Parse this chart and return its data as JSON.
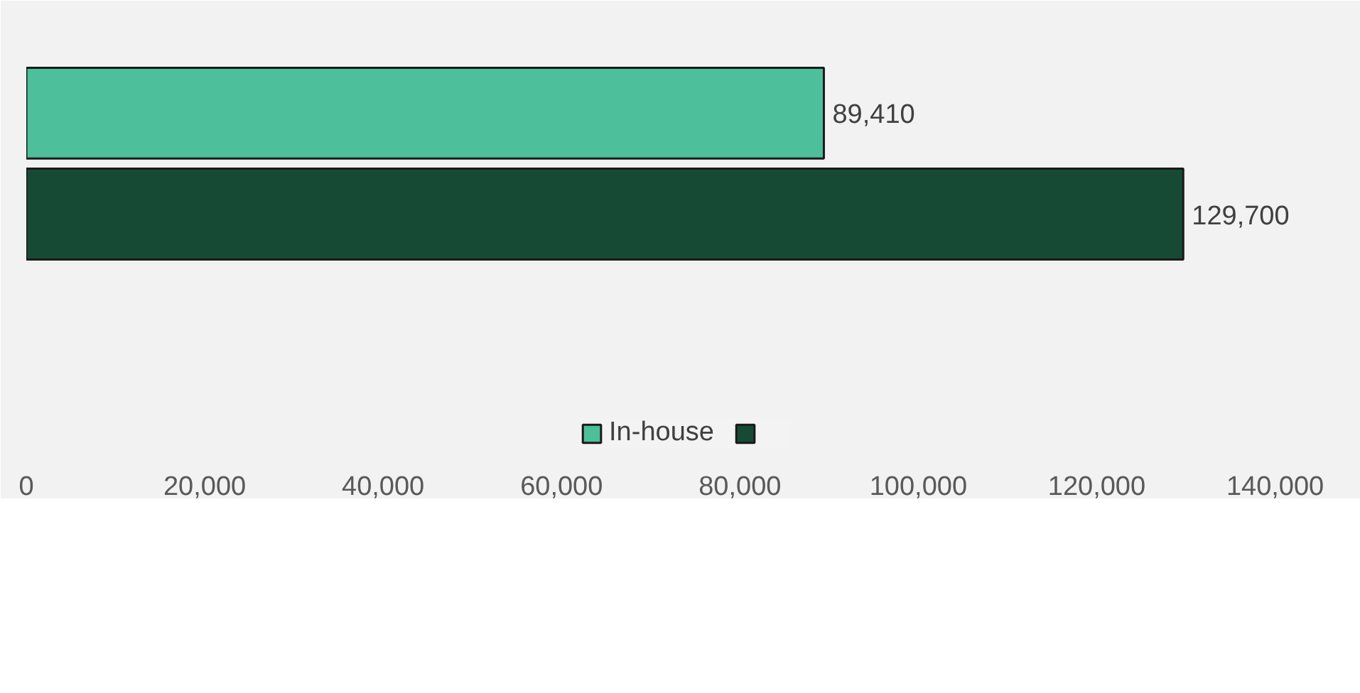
{
  "chart_data": {
    "type": "bar",
    "orientation": "horizontal",
    "categories": [
      null
    ],
    "series": [
      {
        "name": "In-house",
        "color": "#4dbf9a",
        "values": [
          89410
        ],
        "value_labels": [
          "89,410"
        ]
      },
      {
        "color": "#174a35",
        "values": [
          129700
        ],
        "value_labels": [
          "129,700"
        ]
      }
    ],
    "xlim": [
      0,
      148000
    ],
    "xticks": [
      0,
      {
        "value": 20000,
        "label": "20,000"
      },
      {
        "value": 40000,
        "label": "40,000"
      },
      {
        "value": 60000,
        "label": "60,000"
      },
      {
        "value": 80000,
        "label": "80,000"
      },
      {
        "value": 100000,
        "label": "100,000"
      },
      {
        "value": 120000,
        "label": "120,000"
      },
      {
        "value": 140000,
        "label": "140,000"
      }
    ],
    "legend": "bottom"
  }
}
